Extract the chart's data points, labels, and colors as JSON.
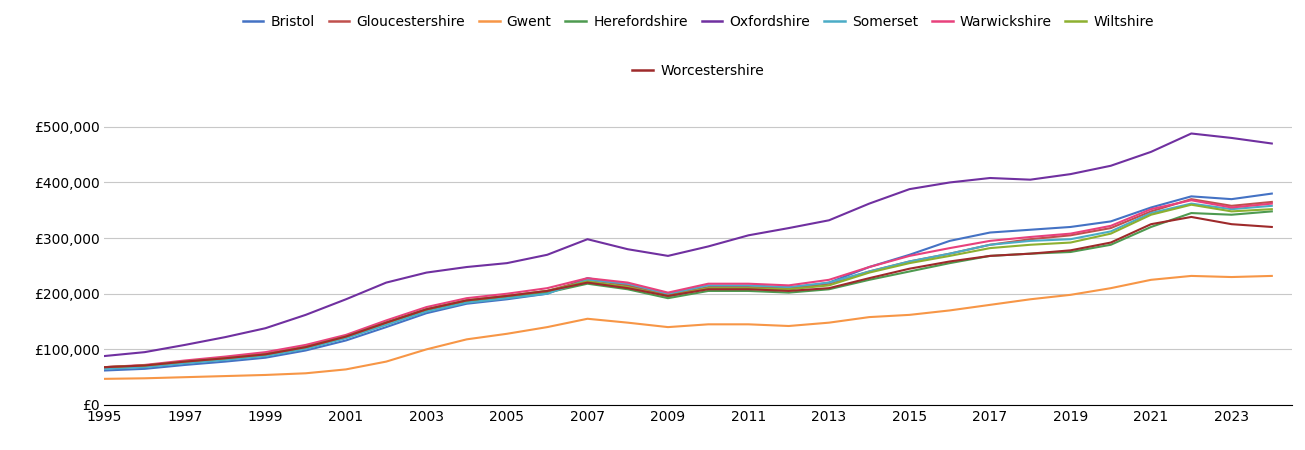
{
  "series": {
    "Bristol": {
      "color": "#4472C4",
      "data": {
        "1995": 62000,
        "1996": 65000,
        "1997": 72000,
        "1998": 78000,
        "1999": 85000,
        "2000": 98000,
        "2001": 116000,
        "2002": 140000,
        "2003": 165000,
        "2004": 182000,
        "2005": 190000,
        "2006": 200000,
        "2007": 228000,
        "2008": 215000,
        "2009": 195000,
        "2010": 210000,
        "2011": 210000,
        "2012": 208000,
        "2013": 220000,
        "2014": 248000,
        "2015": 270000,
        "2016": 295000,
        "2017": 310000,
        "2018": 315000,
        "2019": 320000,
        "2020": 330000,
        "2021": 355000,
        "2022": 375000,
        "2023": 370000,
        "2024": 380000
      }
    },
    "Gloucestershire": {
      "color": "#C0504D",
      "data": {
        "1995": 68000,
        "1996": 71000,
        "1997": 78000,
        "1998": 85000,
        "1999": 92000,
        "2000": 105000,
        "2001": 124000,
        "2002": 148000,
        "2003": 172000,
        "2004": 188000,
        "2005": 196000,
        "2006": 205000,
        "2007": 225000,
        "2008": 215000,
        "2009": 198000,
        "2010": 212000,
        "2011": 212000,
        "2012": 210000,
        "2013": 218000,
        "2014": 240000,
        "2015": 258000,
        "2016": 272000,
        "2017": 288000,
        "2018": 298000,
        "2019": 305000,
        "2020": 318000,
        "2021": 348000,
        "2022": 370000,
        "2023": 358000,
        "2024": 365000
      }
    },
    "Gwent": {
      "color": "#F79646",
      "data": {
        "1995": 47000,
        "1996": 48000,
        "1997": 50000,
        "1998": 52000,
        "1999": 54000,
        "2000": 57000,
        "2001": 64000,
        "2002": 78000,
        "2003": 100000,
        "2004": 118000,
        "2005": 128000,
        "2006": 140000,
        "2007": 155000,
        "2008": 148000,
        "2009": 140000,
        "2010": 145000,
        "2011": 145000,
        "2012": 142000,
        "2013": 148000,
        "2014": 158000,
        "2015": 162000,
        "2016": 170000,
        "2017": 180000,
        "2018": 190000,
        "2019": 198000,
        "2020": 210000,
        "2021": 225000,
        "2022": 232000,
        "2023": 230000,
        "2024": 232000
      }
    },
    "Herefordshire": {
      "color": "#4E9A50",
      "data": {
        "1995": 67000,
        "1996": 70000,
        "1997": 77000,
        "1998": 83000,
        "1999": 90000,
        "2000": 103000,
        "2001": 122000,
        "2002": 148000,
        "2003": 170000,
        "2004": 185000,
        "2005": 193000,
        "2006": 202000,
        "2007": 218000,
        "2008": 208000,
        "2009": 192000,
        "2010": 205000,
        "2011": 205000,
        "2012": 202000,
        "2013": 208000,
        "2014": 225000,
        "2015": 240000,
        "2016": 255000,
        "2017": 268000,
        "2018": 272000,
        "2019": 275000,
        "2020": 288000,
        "2021": 320000,
        "2022": 345000,
        "2023": 342000,
        "2024": 348000
      }
    },
    "Oxfordshire": {
      "color": "#7030A0",
      "data": {
        "1995": 88000,
        "1996": 95000,
        "1997": 108000,
        "1998": 122000,
        "1999": 138000,
        "2000": 162000,
        "2001": 190000,
        "2002": 220000,
        "2003": 238000,
        "2004": 248000,
        "2005": 255000,
        "2006": 270000,
        "2007": 298000,
        "2008": 280000,
        "2009": 268000,
        "2010": 285000,
        "2011": 305000,
        "2012": 318000,
        "2013": 332000,
        "2014": 362000,
        "2015": 388000,
        "2016": 400000,
        "2017": 408000,
        "2018": 405000,
        "2019": 415000,
        "2020": 430000,
        "2021": 455000,
        "2022": 488000,
        "2023": 480000,
        "2024": 470000
      }
    },
    "Somerset": {
      "color": "#4BACC6",
      "data": {
        "1995": 65000,
        "1996": 68000,
        "1997": 75000,
        "1998": 81000,
        "1999": 88000,
        "2000": 101000,
        "2001": 120000,
        "2002": 144000,
        "2003": 168000,
        "2004": 184000,
        "2005": 192000,
        "2006": 200000,
        "2007": 225000,
        "2008": 218000,
        "2009": 200000,
        "2010": 215000,
        "2011": 215000,
        "2012": 212000,
        "2013": 220000,
        "2014": 240000,
        "2015": 258000,
        "2016": 272000,
        "2017": 288000,
        "2018": 295000,
        "2019": 298000,
        "2020": 312000,
        "2021": 345000,
        "2022": 362000,
        "2023": 352000,
        "2024": 358000
      }
    },
    "Warwickshire": {
      "color": "#E8417C",
      "data": {
        "1995": 68000,
        "1996": 72000,
        "1997": 80000,
        "1998": 87000,
        "1999": 95000,
        "2000": 108000,
        "2001": 126000,
        "2002": 152000,
        "2003": 176000,
        "2004": 192000,
        "2005": 200000,
        "2006": 210000,
        "2007": 228000,
        "2008": 220000,
        "2009": 202000,
        "2010": 218000,
        "2011": 218000,
        "2012": 215000,
        "2013": 225000,
        "2014": 248000,
        "2015": 268000,
        "2016": 282000,
        "2017": 295000,
        "2018": 302000,
        "2019": 308000,
        "2020": 322000,
        "2021": 352000,
        "2022": 368000,
        "2023": 355000,
        "2024": 362000
      }
    },
    "Wiltshire": {
      "color": "#8DB030",
      "data": {
        "1995": 68000,
        "1996": 71000,
        "1997": 78000,
        "1998": 84000,
        "1999": 91000,
        "2000": 104000,
        "2001": 123000,
        "2002": 148000,
        "2003": 172000,
        "2004": 188000,
        "2005": 196000,
        "2006": 205000,
        "2007": 222000,
        "2008": 212000,
        "2009": 196000,
        "2010": 210000,
        "2011": 210000,
        "2012": 208000,
        "2013": 215000,
        "2014": 238000,
        "2015": 255000,
        "2016": 268000,
        "2017": 282000,
        "2018": 288000,
        "2019": 292000,
        "2020": 308000,
        "2021": 342000,
        "2022": 360000,
        "2023": 348000,
        "2024": 352000
      }
    },
    "Worcestershire": {
      "color": "#9E2A2B",
      "data": {
        "1995": 68000,
        "1996": 71000,
        "1997": 78000,
        "1998": 84000,
        "1999": 91000,
        "2000": 104000,
        "2001": 123000,
        "2002": 148000,
        "2003": 172000,
        "2004": 188000,
        "2005": 196000,
        "2006": 205000,
        "2007": 220000,
        "2008": 210000,
        "2009": 196000,
        "2010": 208000,
        "2011": 208000,
        "2012": 205000,
        "2013": 210000,
        "2014": 228000,
        "2015": 245000,
        "2016": 258000,
        "2017": 268000,
        "2018": 272000,
        "2019": 278000,
        "2020": 292000,
        "2021": 325000,
        "2022": 338000,
        "2023": 325000,
        "2024": 320000
      }
    }
  },
  "ylim": [
    0,
    550000
  ],
  "yticks": [
    0,
    100000,
    200000,
    300000,
    400000,
    500000
  ],
  "ytick_labels": [
    "£0",
    "£100,000",
    "£200,000",
    "£300,000",
    "£400,000",
    "£500,000"
  ],
  "xtick_years": [
    1995,
    1997,
    1999,
    2001,
    2003,
    2005,
    2007,
    2009,
    2011,
    2013,
    2015,
    2017,
    2019,
    2021,
    2023
  ],
  "background_color": "#ffffff",
  "grid_color": "#c8c8c8",
  "legend_row1": [
    "Bristol",
    "Gloucestershire",
    "Gwent",
    "Herefordshire",
    "Oxfordshire",
    "Somerset",
    "Warwickshire",
    "Wiltshire"
  ],
  "legend_row2": [
    "Worcestershire"
  ]
}
